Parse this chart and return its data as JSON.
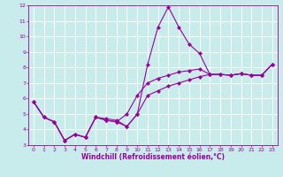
{
  "xlabel": "Windchill (Refroidissement éolien,°C)",
  "background_color": "#c8ecec",
  "grid_color": "#ffffff",
  "line_color": "#990099",
  "x": [
    0,
    1,
    2,
    3,
    4,
    5,
    6,
    7,
    8,
    9,
    10,
    11,
    12,
    13,
    14,
    15,
    16,
    17,
    18,
    19,
    20,
    21,
    22,
    23
  ],
  "line1": [
    5.8,
    4.8,
    4.5,
    3.3,
    3.7,
    3.5,
    4.8,
    4.7,
    4.6,
    4.2,
    5.0,
    8.2,
    10.6,
    11.9,
    10.6,
    9.5,
    8.9,
    7.55,
    7.55,
    7.5,
    7.6,
    7.5,
    7.5,
    8.2
  ],
  "line2": [
    5.8,
    4.8,
    4.5,
    3.3,
    3.7,
    3.5,
    4.8,
    4.6,
    4.5,
    5.0,
    6.2,
    7.0,
    7.3,
    7.5,
    7.7,
    7.8,
    7.9,
    7.55,
    7.55,
    7.5,
    7.6,
    7.5,
    7.5,
    8.2
  ],
  "line3": [
    5.8,
    4.8,
    4.5,
    3.3,
    3.7,
    3.5,
    4.8,
    4.6,
    4.5,
    4.2,
    5.0,
    6.2,
    6.5,
    6.8,
    7.0,
    7.2,
    7.4,
    7.55,
    7.55,
    7.5,
    7.6,
    7.5,
    7.5,
    8.2
  ],
  "ylim": [
    3,
    12
  ],
  "xlim": [
    -0.5,
    23.5
  ],
  "yticks": [
    3,
    4,
    5,
    6,
    7,
    8,
    9,
    10,
    11,
    12
  ],
  "xticks": [
    0,
    1,
    2,
    3,
    4,
    5,
    6,
    7,
    8,
    9,
    10,
    11,
    12,
    13,
    14,
    15,
    16,
    17,
    18,
    19,
    20,
    21,
    22,
    23
  ],
  "marker": "D",
  "markersize": 2.0,
  "linewidth": 0.8,
  "tick_fontsize": 4.5,
  "xlabel_fontsize": 5.5
}
